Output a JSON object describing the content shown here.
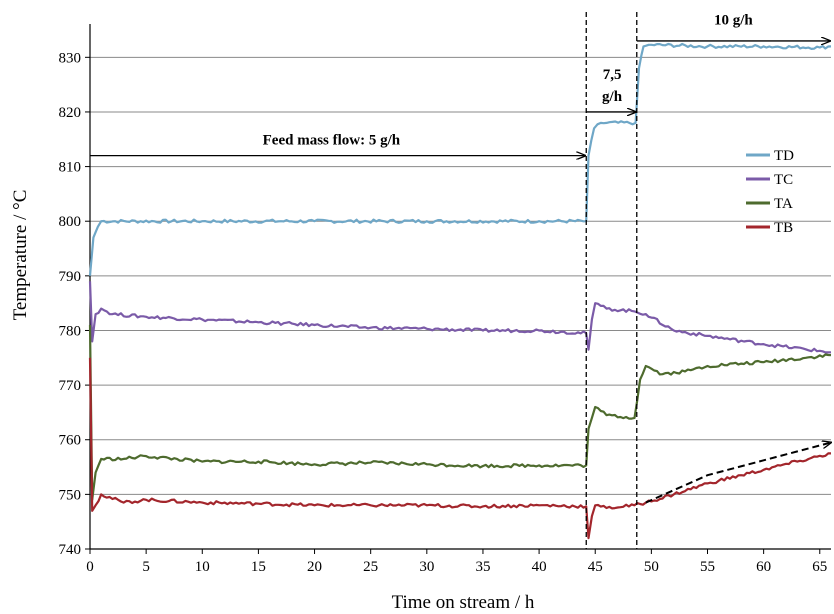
{
  "chart_data": {
    "type": "line",
    "title": "",
    "xlabel": "Time on stream / h",
    "ylabel": "Temperature / °C",
    "xlim": [
      0,
      66
    ],
    "ylim": [
      740,
      835
    ],
    "x_ticks": [
      0,
      5,
      10,
      15,
      20,
      25,
      30,
      35,
      40,
      45,
      50,
      55,
      60,
      65
    ],
    "y_ticks": [
      740,
      750,
      760,
      770,
      780,
      790,
      800,
      810,
      820,
      830
    ],
    "grid": "horizontal",
    "legend_position": "right",
    "colors": {
      "TD": "#6fa7c7",
      "TC": "#7b5ba8",
      "TA": "#4e6b2e",
      "TB": "#a3262c"
    },
    "series": [
      {
        "name": "TD",
        "points": [
          [
            0,
            790
          ],
          [
            0.3,
            797
          ],
          [
            0.7,
            799
          ],
          [
            1,
            800
          ],
          [
            10,
            800
          ],
          [
            20,
            800
          ],
          [
            30,
            800
          ],
          [
            40,
            800
          ],
          [
            44.2,
            800
          ],
          [
            44.4,
            812
          ],
          [
            44.9,
            817
          ],
          [
            45.5,
            818
          ],
          [
            48.6,
            818
          ],
          [
            48.9,
            828
          ],
          [
            49.3,
            832
          ],
          [
            50,
            832.3
          ],
          [
            55,
            832
          ],
          [
            60,
            832
          ],
          [
            65,
            831.8
          ],
          [
            66,
            832
          ]
        ]
      },
      {
        "name": "TC",
        "points": [
          [
            0,
            789
          ],
          [
            0.2,
            778
          ],
          [
            0.5,
            783
          ],
          [
            1,
            784
          ],
          [
            2,
            783
          ],
          [
            5,
            782.5
          ],
          [
            10,
            782
          ],
          [
            15,
            781.5
          ],
          [
            20,
            781
          ],
          [
            25,
            780.5
          ],
          [
            30,
            780.3
          ],
          [
            35,
            780
          ],
          [
            40,
            780
          ],
          [
            44.2,
            779.5
          ],
          [
            44.4,
            776.5
          ],
          [
            44.7,
            782
          ],
          [
            45,
            785
          ],
          [
            46,
            784
          ],
          [
            48.5,
            783.5
          ],
          [
            49.5,
            783
          ],
          [
            52,
            780
          ],
          [
            55,
            779
          ],
          [
            60,
            777.5
          ],
          [
            66,
            776
          ]
        ]
      },
      {
        "name": "TA",
        "points": [
          [
            0,
            781
          ],
          [
            0.2,
            749
          ],
          [
            0.5,
            754
          ],
          [
            1,
            756.5
          ],
          [
            3,
            756.5
          ],
          [
            5,
            757
          ],
          [
            10,
            756
          ],
          [
            15,
            756
          ],
          [
            20,
            755.5
          ],
          [
            25,
            755.8
          ],
          [
            30,
            755.5
          ],
          [
            35,
            755.2
          ],
          [
            40,
            755.3
          ],
          [
            44.2,
            755.3
          ],
          [
            44.4,
            762
          ],
          [
            44.7,
            764
          ],
          [
            45,
            766
          ],
          [
            46,
            764.5
          ],
          [
            48.5,
            764
          ],
          [
            49,
            771
          ],
          [
            49.5,
            773.5
          ],
          [
            51,
            772
          ],
          [
            53,
            772.5
          ],
          [
            55,
            773.5
          ],
          [
            60,
            774.2
          ],
          [
            66,
            775.5
          ]
        ]
      },
      {
        "name": "TB",
        "points": [
          [
            0,
            775
          ],
          [
            0.2,
            747
          ],
          [
            0.5,
            748
          ],
          [
            1,
            750
          ],
          [
            3,
            748.5
          ],
          [
            5,
            749
          ],
          [
            10,
            748.5
          ],
          [
            15,
            748.3
          ],
          [
            20,
            748
          ],
          [
            25,
            748
          ],
          [
            30,
            748
          ],
          [
            35,
            747.8
          ],
          [
            40,
            748
          ],
          [
            44.2,
            747.8
          ],
          [
            44.4,
            742
          ],
          [
            44.7,
            746
          ],
          [
            45,
            748
          ],
          [
            46,
            747.5
          ],
          [
            48.5,
            748
          ],
          [
            49.5,
            748.5
          ],
          [
            52,
            750
          ],
          [
            55,
            752
          ],
          [
            58,
            753.5
          ],
          [
            60,
            754.5
          ],
          [
            63,
            756
          ],
          [
            66,
            757.5
          ]
        ]
      }
    ],
    "annotations": {
      "vlines": [
        44.2,
        48.7
      ],
      "feed": {
        "label": "Feed mass flow: 5 g/h",
        "x1": 0,
        "x2": 44.2,
        "y": 812,
        "lx": 21.5,
        "ly": 814
      },
      "feed75_line1": {
        "label": "7,5",
        "lx": 46.5,
        "ly": 826
      },
      "feed75_line2": {
        "label": "g/h",
        "lx": 46.5,
        "ly": 822
      },
      "arrow75": {
        "x1": 44.2,
        "x2": 48.7,
        "y": 820
      },
      "feed10": {
        "label": "10 g/h",
        "x1": 48.7,
        "x2": 66,
        "y": 833,
        "lx": 57.3,
        "ly": 836
      },
      "trend": [
        [
          49.5,
          748.5
        ],
        [
          55,
          753.5
        ],
        [
          66,
          759.5
        ]
      ]
    }
  }
}
